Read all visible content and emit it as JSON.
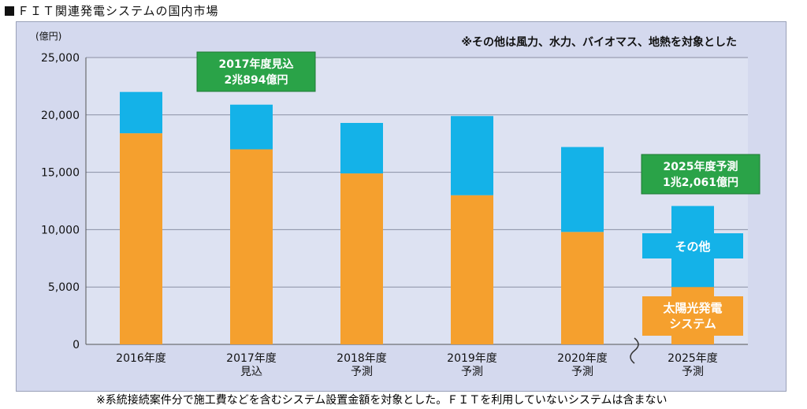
{
  "page": {
    "title": "ＦＩＴ関連発電システムの国内市場",
    "footnote": "※系統接続案件分で施工費などを含むシステム設置金額を対象とした。ＦＩＴを利用していないシステムは含まない"
  },
  "chart_data": {
    "type": "bar",
    "stacked": true,
    "title": "",
    "unit_label": "(億円)",
    "top_note": "※その他は風力、水力、バイオマス、地熱を対象とした",
    "categories": [
      [
        "2016年度"
      ],
      [
        "2017年度",
        "見込"
      ],
      [
        "2018年度",
        "予測"
      ],
      [
        "2019年度",
        "予測"
      ],
      [
        "2020年度",
        "予測"
      ],
      [
        "2025年度",
        "予測"
      ]
    ],
    "series": [
      {
        "name": "太陽光発電システム",
        "label_lines": [
          "太陽光発電",
          "システム"
        ],
        "color": "#f5a02e",
        "values": [
          18400,
          17000,
          14900,
          13000,
          9800,
          5000
        ]
      },
      {
        "name": "その他",
        "label_lines": [
          "その他"
        ],
        "color": "#14b2e8",
        "values": [
          3600,
          3894,
          4400,
          6900,
          7400,
          7061
        ]
      }
    ],
    "ylim": [
      0,
      25000
    ],
    "yticks": [
      0,
      5000,
      10000,
      15000,
      20000,
      25000
    ],
    "ytick_labels": [
      "0",
      "5,000",
      "10,000",
      "15,000",
      "20,000",
      "25,000"
    ],
    "grid": true,
    "axis_break_after_category": 4,
    "callouts": [
      {
        "category_index": 1,
        "lines": [
          "2017年度見込",
          "2兆894億円"
        ],
        "color": "#2aa348"
      },
      {
        "category_index": 5,
        "lines": [
          "2025年度予測",
          "1兆2,061億円"
        ],
        "color": "#2aa348"
      }
    ]
  }
}
